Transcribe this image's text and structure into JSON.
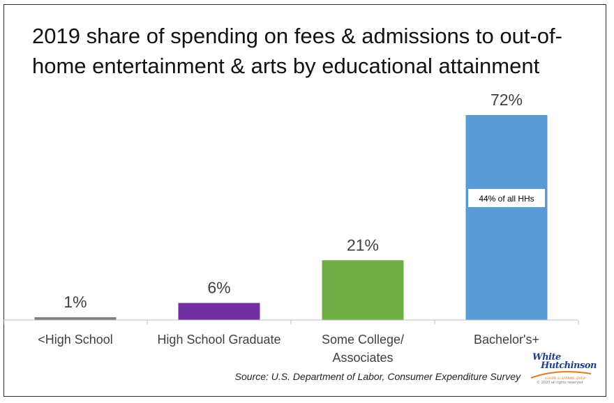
{
  "chart_data": {
    "type": "bar",
    "title": "2019 share of spending on fees & admissions to out-of-home entertainment & arts by educational attainment",
    "categories": [
      "<High School",
      "High School Graduate",
      "Some College/ Associates",
      "Bachelor's+"
    ],
    "category_lines": [
      [
        "<High School"
      ],
      [
        "High School Graduate"
      ],
      [
        "Some College/",
        "Associates"
      ],
      [
        "Bachelor's+"
      ]
    ],
    "values": [
      1,
      6,
      21,
      72
    ],
    "value_labels": [
      "1%",
      "6%",
      "21%",
      "72%"
    ],
    "colors": [
      "#808080",
      "#7030a0",
      "#70ad47",
      "#5b9bd5"
    ],
    "ylim": [
      0,
      72
    ],
    "grid": false,
    "annotation": "44% of all HHs",
    "source": "Source: U.S. Department of Labor, Consumer Expenditure Survey"
  },
  "logo": {
    "line1": "White",
    "line2": "Hutchinson",
    "tagline": "LEISURE & LEARNING GROUP",
    "fine_print": "© 2020 all rights reserved"
  }
}
